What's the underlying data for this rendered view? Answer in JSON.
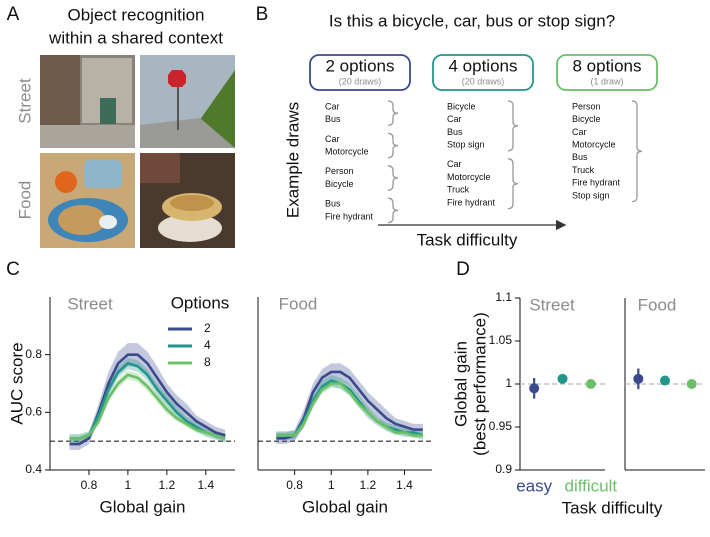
{
  "panel_a": {
    "label": "A",
    "title": [
      "Object recognition",
      "within a shared context"
    ],
    "rows": [
      "Street",
      "Food"
    ]
  },
  "panel_b": {
    "label": "B",
    "title": "Is this a bicycle, car, bus or stop sign?",
    "example_label": "Example draws",
    "axis_label": "Task difficulty",
    "conditions": [
      {
        "name": "2 options",
        "draws": "(20 draws)",
        "color": "#3b4a8c",
        "examples": [
          [
            "Car",
            "Bus"
          ],
          [
            "Car",
            "Motorcycle"
          ],
          [
            "Person",
            "Bicycle"
          ],
          [
            "Bus",
            "Fire hydrant"
          ]
        ]
      },
      {
        "name": "4 options",
        "draws": "(20 draws)",
        "color": "#22968b",
        "examples": [
          [
            "Bicycle",
            "Car",
            "Bus",
            "Stop sign"
          ],
          [
            "Car",
            "Motorcycle",
            "Truck",
            "Fire hydrant"
          ]
        ]
      },
      {
        "name": "8 options",
        "draws": "(1 draw)",
        "color": "#6bbf68",
        "examples": [
          [
            "Person",
            "Bicycle",
            "Car",
            "Motorcycle",
            "Bus",
            "Truck",
            "Fire hydrant",
            "Stop sign"
          ]
        ]
      }
    ]
  },
  "chart_data": [
    {
      "type": "line",
      "panel": "C",
      "title": "Street",
      "xlabel": "Global gain",
      "ylabel": "AUC score",
      "legend_title": "Options",
      "x": [
        0.7,
        0.75,
        0.8,
        0.85,
        0.9,
        0.95,
        1.0,
        1.05,
        1.1,
        1.15,
        1.2,
        1.25,
        1.3,
        1.35,
        1.4,
        1.45,
        1.5
      ],
      "xlim": [
        0.6,
        1.55
      ],
      "xticks": [
        0.8,
        1,
        1.2,
        1.4
      ],
      "ylim": [
        0.4,
        1.0
      ],
      "yticks": [
        0.4,
        0.6,
        0.8
      ],
      "ref_line": 0.5,
      "series": [
        {
          "name": "2",
          "color": "#3b4a8c",
          "values": [
            0.49,
            0.49,
            0.51,
            0.6,
            0.7,
            0.77,
            0.8,
            0.8,
            0.77,
            0.72,
            0.67,
            0.63,
            0.6,
            0.57,
            0.55,
            0.53,
            0.52
          ],
          "errors": [
            0.02,
            0.02,
            0.02,
            0.03,
            0.04,
            0.04,
            0.04,
            0.04,
            0.04,
            0.04,
            0.03,
            0.03,
            0.03,
            0.02,
            0.02,
            0.02,
            0.02
          ]
        },
        {
          "name": "4",
          "color": "#22968b",
          "values": [
            0.51,
            0.51,
            0.52,
            0.59,
            0.68,
            0.74,
            0.77,
            0.76,
            0.73,
            0.68,
            0.64,
            0.6,
            0.57,
            0.55,
            0.53,
            0.52,
            0.51
          ],
          "errors": [
            0.015,
            0.015,
            0.015,
            0.02,
            0.02,
            0.02,
            0.02,
            0.02,
            0.02,
            0.02,
            0.02,
            0.02,
            0.015,
            0.015,
            0.015,
            0.015,
            0.015
          ]
        },
        {
          "name": "8",
          "color": "#6bbf68",
          "values": [
            0.51,
            0.51,
            0.52,
            0.57,
            0.65,
            0.7,
            0.73,
            0.72,
            0.69,
            0.65,
            0.61,
            0.58,
            0.56,
            0.54,
            0.53,
            0.52,
            0.51
          ],
          "errors": [
            0.01,
            0.01,
            0.01,
            0.015,
            0.015,
            0.015,
            0.015,
            0.015,
            0.015,
            0.015,
            0.015,
            0.01,
            0.01,
            0.01,
            0.01,
            0.01,
            0.01
          ]
        }
      ]
    },
    {
      "type": "line",
      "title": "Food",
      "xlabel": "Global gain",
      "x": [
        0.7,
        0.75,
        0.8,
        0.85,
        0.9,
        0.95,
        1.0,
        1.05,
        1.1,
        1.15,
        1.2,
        1.25,
        1.3,
        1.35,
        1.4,
        1.45,
        1.5
      ],
      "xlim": [
        0.6,
        1.55
      ],
      "xticks": [
        0.8,
        1,
        1.2,
        1.4
      ],
      "ylim": [
        0.4,
        1.0
      ],
      "ref_line": 0.5,
      "series": [
        {
          "color": "#3b4a8c",
          "values": [
            0.51,
            0.51,
            0.52,
            0.58,
            0.67,
            0.72,
            0.74,
            0.74,
            0.72,
            0.68,
            0.64,
            0.61,
            0.58,
            0.56,
            0.55,
            0.54,
            0.54
          ],
          "errors": [
            0.02,
            0.02,
            0.02,
            0.03,
            0.03,
            0.03,
            0.03,
            0.03,
            0.03,
            0.03,
            0.03,
            0.03,
            0.03,
            0.02,
            0.02,
            0.02,
            0.02
          ]
        },
        {
          "color": "#22968b",
          "values": [
            0.52,
            0.52,
            0.52,
            0.57,
            0.64,
            0.69,
            0.71,
            0.7,
            0.68,
            0.64,
            0.6,
            0.57,
            0.55,
            0.54,
            0.53,
            0.53,
            0.52
          ],
          "errors": [
            0.015,
            0.015,
            0.015,
            0.02,
            0.02,
            0.02,
            0.02,
            0.02,
            0.02,
            0.02,
            0.02,
            0.015,
            0.015,
            0.015,
            0.015,
            0.015,
            0.015
          ]
        },
        {
          "color": "#6bbf68",
          "values": [
            0.52,
            0.52,
            0.52,
            0.56,
            0.63,
            0.68,
            0.7,
            0.7,
            0.67,
            0.63,
            0.6,
            0.57,
            0.55,
            0.53,
            0.53,
            0.52,
            0.52
          ],
          "errors": [
            0.01,
            0.01,
            0.01,
            0.015,
            0.015,
            0.015,
            0.015,
            0.015,
            0.015,
            0.015,
            0.015,
            0.01,
            0.01,
            0.01,
            0.01,
            0.01,
            0.01
          ]
        }
      ]
    },
    {
      "type": "dot",
      "panel": "D",
      "title": "Street",
      "xlabel": "Task difficulty",
      "ylabel": [
        "Global gain",
        "(best performance)"
      ],
      "categories": [
        "easy",
        null,
        "difficult"
      ],
      "values": [
        0.995,
        1.006,
        1.0
      ],
      "errors": [
        0.012,
        0.002,
        0.002
      ],
      "colors": [
        "#3b4a8c",
        "#22968b",
        "#6bbf68"
      ],
      "ylim": [
        0.9,
        1.1
      ],
      "yticks": [
        0.9,
        0.95,
        1,
        1.05,
        1.1
      ],
      "ref_line": 1
    },
    {
      "type": "dot",
      "title": "Food",
      "categories": [
        null,
        null,
        null
      ],
      "values": [
        1.006,
        1.004,
        1.0
      ],
      "errors": [
        0.012,
        0.004,
        0.002
      ],
      "colors": [
        "#3b4a8c",
        "#22968b",
        "#6bbf68"
      ],
      "ylim": [
        0.9,
        1.1
      ],
      "ref_line": 1
    }
  ]
}
